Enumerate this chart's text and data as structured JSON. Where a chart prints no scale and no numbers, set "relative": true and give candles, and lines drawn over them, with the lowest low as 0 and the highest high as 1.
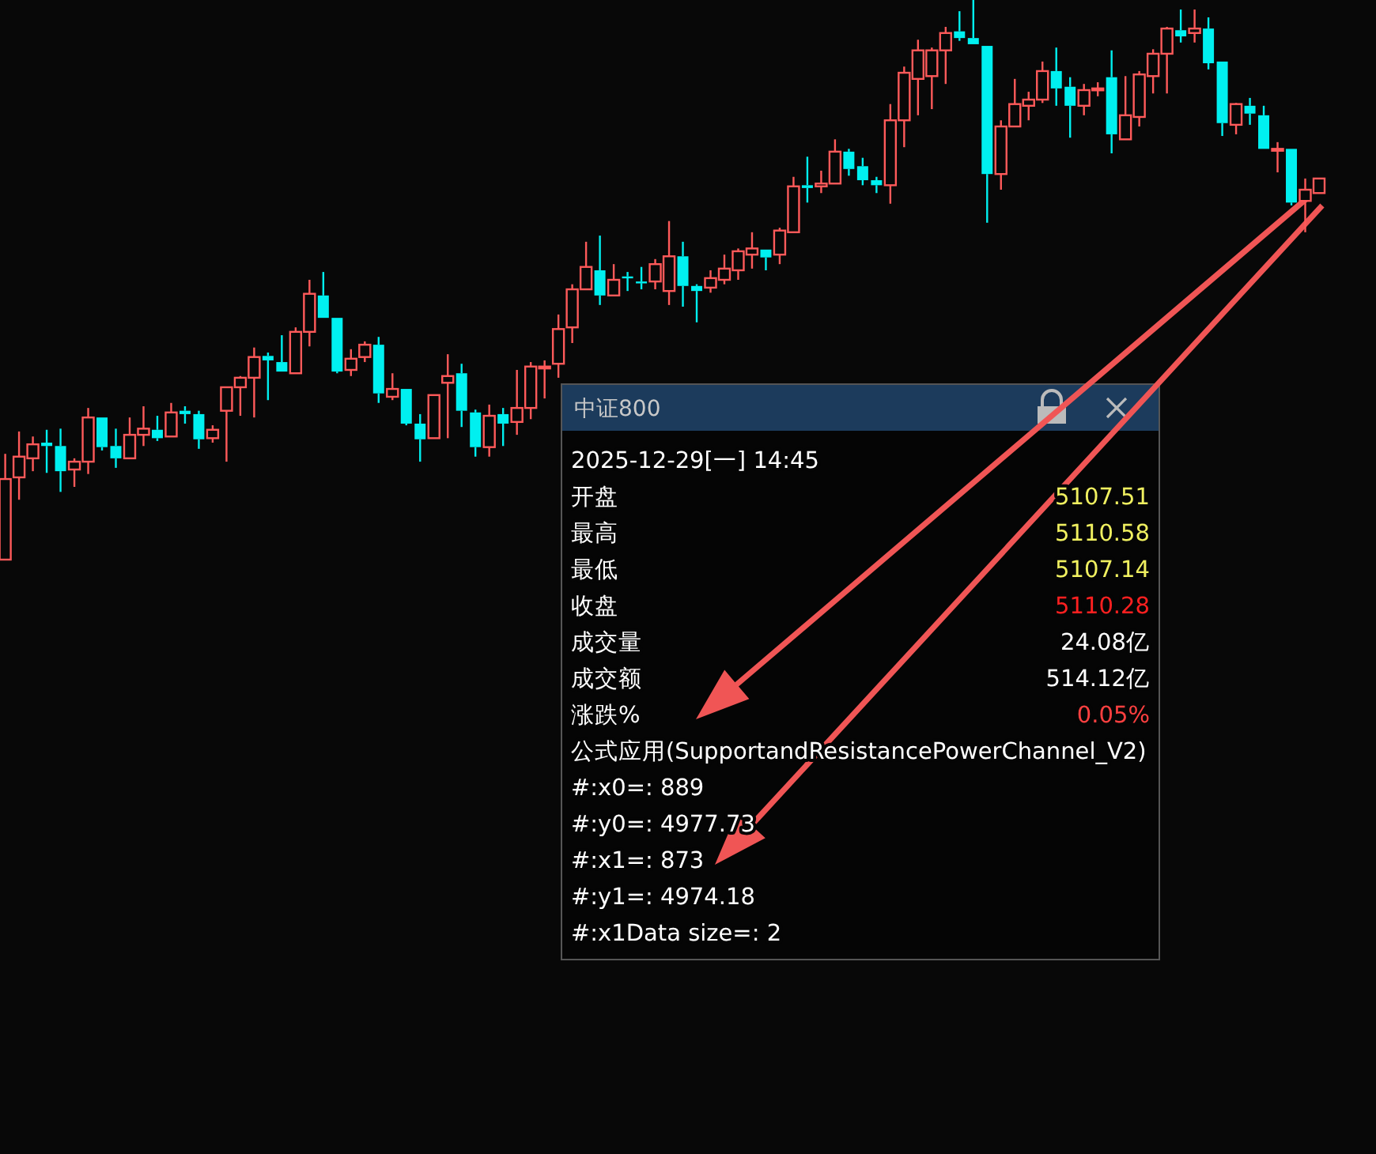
{
  "chart_data": [
    {
      "type": "candlestick",
      "relative": true,
      "categories": [
        null,
        null,
        null,
        null,
        null,
        null,
        null,
        null,
        null,
        null,
        null,
        null,
        null,
        null,
        null,
        null,
        null,
        null,
        null,
        null,
        null,
        null,
        null,
        null,
        null,
        null,
        null,
        null,
        null,
        null,
        null,
        null,
        null,
        null,
        null,
        null,
        null,
        null,
        null,
        null,
        null,
        null,
        null,
        null,
        null,
        null,
        null,
        null,
        null,
        null,
        null,
        null,
        null,
        null,
        null,
        null,
        null,
        null,
        null,
        null,
        null,
        null,
        null,
        null,
        null,
        null,
        null,
        null,
        null,
        null,
        null,
        null,
        null,
        null,
        null,
        null,
        null,
        null,
        null,
        null,
        null,
        null,
        null,
        null,
        null,
        null,
        null,
        null,
        null,
        null,
        null,
        null,
        null,
        null,
        null,
        null
      ],
      "ohlc": [
        [
          0,
          0.189,
          0,
          0.144
        ],
        [
          0.147,
          0.229,
          0.107,
          0.184
        ],
        [
          0.181,
          0.22,
          0.158,
          0.206
        ],
        [
          0.209,
          0.232,
          0.155,
          0.203
        ],
        [
          0.203,
          0.234,
          0.121,
          0.158
        ],
        [
          0.161,
          0.181,
          0.13,
          0.175
        ],
        [
          0.175,
          0.271,
          0.153,
          0.254
        ],
        [
          0.254,
          0.254,
          0.195,
          0.201
        ],
        [
          0.203,
          0.234,
          0.164,
          0.181
        ],
        [
          0.181,
          0.254,
          0.181,
          0.223
        ],
        [
          0.223,
          0.274,
          0.203,
          0.234
        ],
        [
          0.232,
          0.257,
          0.212,
          0.217
        ],
        [
          0.22,
          0.28,
          0.22,
          0.263
        ],
        [
          0.266,
          0.274,
          0.243,
          0.26
        ],
        [
          0.26,
          0.266,
          0.198,
          0.215
        ],
        [
          0.217,
          0.24,
          0.209,
          0.232
        ],
        [
          0.266,
          0.308,
          0.175,
          0.308
        ],
        [
          0.308,
          0.328,
          0.257,
          0.325
        ],
        [
          0.325,
          0.379,
          0.254,
          0.362
        ],
        [
          0.364,
          0.37,
          0.285,
          0.356
        ],
        [
          0.353,
          0.401,
          0.336,
          0.336
        ],
        [
          0.333,
          0.415,
          0.333,
          0.407
        ],
        [
          0.407,
          0.5,
          0.381,
          0.475
        ],
        [
          0.472,
          0.514,
          0.432,
          0.432
        ],
        [
          0.432,
          0.432,
          0.333,
          0.336
        ],
        [
          0.339,
          0.376,
          0.328,
          0.359
        ],
        [
          0.362,
          0.39,
          0.353,
          0.384
        ],
        [
          0.384,
          0.398,
          0.28,
          0.297
        ],
        [
          0.291,
          0.333,
          0.285,
          0.305
        ],
        [
          0.305,
          0.305,
          0.24,
          0.243
        ],
        [
          0.243,
          0.26,
          0.175,
          0.215
        ],
        [
          0.217,
          0.294,
          0.217,
          0.294
        ],
        [
          0.316,
          0.367,
          0.217,
          0.328
        ],
        [
          0.333,
          0.35,
          0.237,
          0.266
        ],
        [
          0.263,
          0.268,
          0.184,
          0.201
        ],
        [
          0.201,
          0.277,
          0.184,
          0.257
        ],
        [
          0.26,
          0.271,
          0.203,
          0.243
        ],
        [
          0.246,
          0.339,
          0.223,
          0.271
        ],
        [
          0.271,
          0.353,
          0.251,
          0.345
        ],
        [
          0.342,
          0.356,
          0.288,
          0.345
        ],
        [
          0.35,
          0.438,
          0.325,
          0.412
        ],
        [
          0.415,
          0.492,
          0.387,
          0.483
        ],
        [
          0.483,
          0.568,
          0.483,
          0.523
        ],
        [
          0.517,
          0.579,
          0.455,
          0.472
        ],
        [
          0.472,
          0.528,
          0.472,
          0.5
        ],
        [
          0.506,
          0.514,
          0.48,
          0.503
        ],
        [
          0.497,
          0.523,
          0.483,
          0.494
        ],
        [
          0.497,
          0.537,
          0.483,
          0.528
        ],
        [
          0.48,
          0.605,
          0.455,
          0.542
        ],
        [
          0.542,
          0.568,
          0.452,
          0.489
        ],
        [
          0.489,
          0.492,
          0.424,
          0.48
        ],
        [
          0.486,
          0.517,
          0.477,
          0.503
        ],
        [
          0.5,
          0.545,
          0.492,
          0.52
        ],
        [
          0.517,
          0.556,
          0.5,
          0.551
        ],
        [
          0.545,
          0.585,
          0.52,
          0.556
        ],
        [
          0.554,
          0.554,
          0.517,
          0.54
        ],
        [
          0.545,
          0.593,
          0.528,
          0.588
        ],
        [
          0.585,
          0.684,
          0.585,
          0.667
        ],
        [
          0.669,
          0.72,
          0.638,
          0.664
        ],
        [
          0.667,
          0.695,
          0.655,
          0.672
        ],
        [
          0.672,
          0.751,
          0.672,
          0.729
        ],
        [
          0.729,
          0.734,
          0.686,
          0.698
        ],
        [
          0.703,
          0.718,
          0.669,
          0.678
        ],
        [
          0.678,
          0.684,
          0.655,
          0.669
        ],
        [
          0.669,
          0.814,
          0.636,
          0.785
        ],
        [
          0.785,
          0.881,
          0.737,
          0.87
        ],
        [
          0.859,
          0.929,
          0.794,
          0.91
        ],
        [
          0.864,
          0.915,
          0.805,
          0.91
        ],
        [
          0.91,
          0.952,
          0.85,
          0.941
        ],
        [
          0.944,
          0.98,
          0.927,
          0.932
        ],
        [
          0.932,
          1,
          0.921,
          0.921
        ],
        [
          0.918,
          0.918,
          0.602,
          0.689
        ],
        [
          0.689,
          0.785,
          0.661,
          0.774
        ],
        [
          0.774,
          0.859,
          0.774,
          0.814
        ],
        [
          0.811,
          0.836,
          0.785,
          0.822
        ],
        [
          0.822,
          0.89,
          0.816,
          0.873
        ],
        [
          0.873,
          0.915,
          0.811,
          0.842
        ],
        [
          0.845,
          0.862,
          0.754,
          0.811
        ],
        [
          0.811,
          0.85,
          0.794,
          0.839
        ],
        [
          0.839,
          0.853,
          0.828,
          0.842
        ],
        [
          0.862,
          0.91,
          0.726,
          0.76
        ],
        [
          0.751,
          0.864,
          0.751,
          0.794
        ],
        [
          0.791,
          0.873,
          0.774,
          0.867
        ],
        [
          0.864,
          0.912,
          0.833,
          0.904
        ],
        [
          0.904,
          0.952,
          0.833,
          0.949
        ],
        [
          0.946,
          0.983,
          0.924,
          0.935
        ],
        [
          0.941,
          0.983,
          0.924,
          0.949
        ],
        [
          0.949,
          0.969,
          0.876,
          0.887
        ],
        [
          0.89,
          0.89,
          0.757,
          0.78
        ],
        [
          0.777,
          0.816,
          0.76,
          0.814
        ],
        [
          0.811,
          0.825,
          0.777,
          0.797
        ],
        [
          0.794,
          0.811,
          0.734,
          0.734
        ],
        [
          0.732,
          0.746,
          0.692,
          0.734
        ],
        [
          0.734,
          0.734,
          0.633,
          0.638
        ],
        [
          0.641,
          0.681,
          0.585,
          0.661
        ],
        [
          0.655,
          0.681,
          0.655,
          0.681
        ]
      ]
    },
    {
      "type": "other",
      "title": "中证800",
      "annotations": [
        "2025-12-29[一] 14:45",
        "开盘",
        "5107.51",
        "最高",
        "5110.58",
        "最低",
        "5107.14",
        "收盘",
        "5110.28",
        "成交量",
        "24.08亿",
        "成交额",
        "514.12亿",
        "涨跌%",
        "0.05%",
        "公式应用(SupportandResistancePowerChannel_V2)",
        "#:x0=: 889",
        "#:y0=: 4977.73",
        "#:x1=: 873",
        "#:y1=: 4974.18",
        "#:x1Data size=: 2"
      ]
    }
  ]
}
